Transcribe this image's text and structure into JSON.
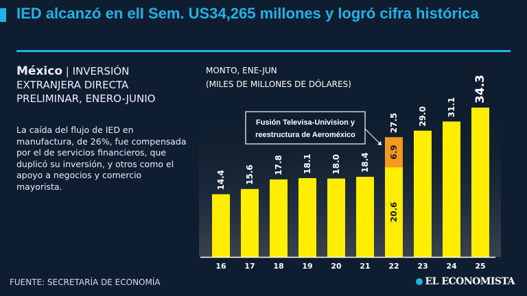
{
  "header": {
    "title": "IED alcanzó en elI Sem. US34,265 millones y logró cifra histórica"
  },
  "left": {
    "country": "México",
    "separator": "|",
    "subtitle": "INVERSIÓN EXTRANJERA DIRECTA PRELIMINAR, ENERO-JUNIO",
    "description": "La caída del flujo de IED en manufactura, de 26%, fue compensada por el de servicios financieros, que duplicó su inversión, y otros como el apoyo a negocios y comercio mayorista."
  },
  "footer": {
    "source": "FUENTE: SECRETARÍA DE ECONOMÍA",
    "brand": "EL ECONOMISTA"
  },
  "colors": {
    "background": "#0e1d2f",
    "accent": "#1fb3ea",
    "bar": "#ffee00",
    "highlight": "#f39a1e"
  },
  "chart_data": {
    "type": "bar",
    "title_lines": [
      "MONTO, ENE-JUN",
      "(MILES DE MILLONES DE DÓLARES)"
    ],
    "categories": [
      "16",
      "17",
      "18",
      "19",
      "20",
      "21",
      "22",
      "23",
      "24",
      "25"
    ],
    "values": [
      14.4,
      15.6,
      17.8,
      18.1,
      18.0,
      18.4,
      27.5,
      29.0,
      31.1,
      34.3
    ],
    "labels": [
      "14.4",
      "15.6",
      "17.8",
      "18.1",
      "18.0",
      "18.4",
      "27.5",
      "29.0",
      "31.1",
      "34.3"
    ],
    "stacked_segment": {
      "category": "22",
      "base": 20.6,
      "base_label": "20.6",
      "extra": 6.9,
      "extra_label": "6.9"
    },
    "annotation": {
      "lines": [
        "Fusión Televisa-Univision y",
        "reestructura de Aeroméxico"
      ],
      "target": "22"
    },
    "ylim": [
      0,
      35
    ],
    "grid": false
  }
}
